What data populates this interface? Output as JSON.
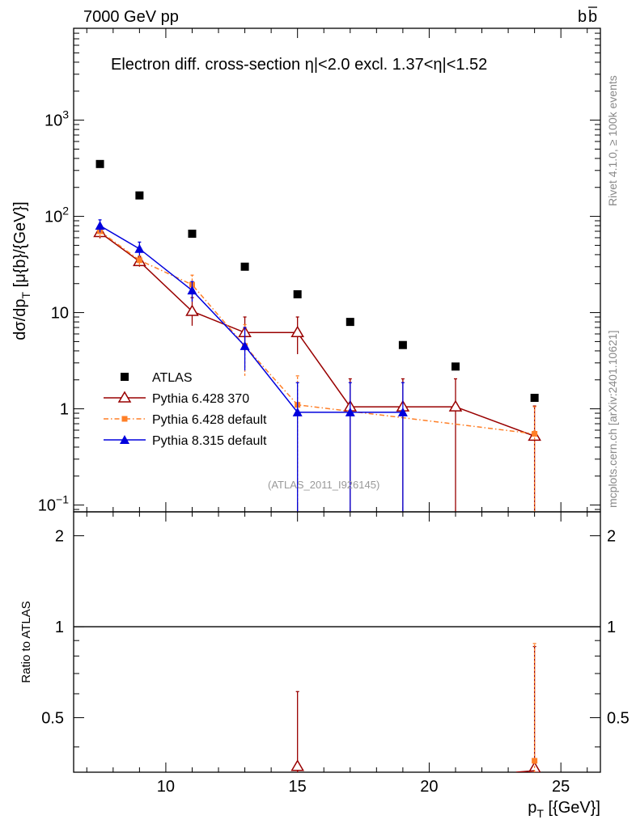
{
  "header": {
    "energy_label": "7000 GeV pp",
    "process_label": "b",
    "process_label_bar": "b"
  },
  "side_labels": {
    "rivet": "Rivet 4.1.0, ≥ 100k events",
    "mcplots": "mcplots.cern.ch [arXiv:2401.10621]"
  },
  "watermark": "(ATLAS_2011_I926145)",
  "colors": {
    "atlas": "#000000",
    "pythia6_370": "#990000",
    "pythia6_default": "#ff7f27",
    "pythia8": "#0000dd"
  },
  "chart_data": [
    {
      "type": "scatter",
      "panel": "main",
      "title": "Electron diff. cross-section η|<2.0 excl. 1.37<η|<1.52",
      "ylabel": "dσ/dp_T [μ{b}/{GeV}]",
      "yscale": "log",
      "ylim": [
        0.085,
        9000
      ],
      "xlim": [
        6.5,
        26.5
      ],
      "y_tick_labels": [
        {
          "value": 0.1,
          "base": "10",
          "exp": "−1"
        },
        {
          "value": 1,
          "base": "1",
          "exp": ""
        },
        {
          "value": 10,
          "base": "10",
          "exp": ""
        },
        {
          "value": 100,
          "base": "10",
          "exp": "2"
        },
        {
          "value": 1000,
          "base": "10",
          "exp": "3"
        }
      ],
      "legend_position": "middle-left",
      "series": [
        {
          "name": "ATLAS",
          "style": "square",
          "x": [
            7.5,
            9,
            11,
            13,
            15,
            17,
            19,
            21,
            24
          ],
          "y": [
            350,
            165,
            66,
            30,
            15.5,
            8,
            4.6,
            2.75,
            1.3
          ]
        },
        {
          "name": "Pythia 6.428 370",
          "style": "open-triangle",
          "x": [
            7.5,
            9,
            11,
            13,
            15,
            17,
            19,
            21,
            24
          ],
          "y": [
            68,
            34,
            10.3,
            6.2,
            6.2,
            1.05,
            1.05,
            1.05,
            0.52
          ],
          "err_lo": [
            9,
            4,
            3,
            2.2,
            2.5,
            1.04,
            1.04,
            1.04,
            0.51
          ],
          "err_hi": [
            9,
            4,
            4,
            2.8,
            2.8,
            1.0,
            1.0,
            1.0,
            0.55
          ]
        },
        {
          "name": "Pythia 6.428 default",
          "style": "filled-square-dashdot",
          "x": [
            7.5,
            9,
            11,
            13,
            15,
            24
          ],
          "y": [
            70,
            35,
            19.5,
            4.5,
            1.1,
            0.55
          ],
          "err_lo": [
            9,
            4,
            5,
            2.3,
            1.09,
            0.54
          ],
          "err_hi": [
            9,
            4,
            5,
            3,
            1.1,
            0.5
          ]
        },
        {
          "name": "Pythia 8.315 default",
          "style": "filled-triangle",
          "x": [
            7.5,
            9,
            11,
            13,
            15,
            17,
            19
          ],
          "y": [
            80,
            46,
            17,
            4.5,
            0.92,
            0.92,
            0.92
          ],
          "err_lo": [
            12,
            7,
            4,
            2,
            0.91,
            0.91,
            0.91
          ],
          "err_hi": [
            12,
            8,
            4,
            2.5,
            0.95,
            0.95,
            0.95
          ]
        }
      ]
    },
    {
      "type": "scatter",
      "panel": "ratio",
      "ylabel": "Ratio to ATLAS",
      "xlabel": "p_T [{GeV}]",
      "xlim": [
        6.5,
        26.5
      ],
      "ylim": [
        0.33,
        2.4
      ],
      "yscale": "log",
      "y_tick_labels": [
        {
          "value": 0.5,
          "label": "0.5"
        },
        {
          "value": 1,
          "label": "1"
        },
        {
          "value": 2,
          "label": "2"
        }
      ],
      "x_tick_labels": [
        {
          "value": 10,
          "label": "10"
        },
        {
          "value": 15,
          "label": "15"
        },
        {
          "value": 20,
          "label": "20"
        },
        {
          "value": 25,
          "label": "25"
        }
      ],
      "reference_line": 1,
      "series": [
        {
          "name": "Pythia 6.428 370",
          "x": [
            15,
            24
          ],
          "y": [
            0.345,
            0.34
          ],
          "err_hi": [
            0.61,
            0.86
          ]
        },
        {
          "name": "Pythia 6.428 default",
          "x": [
            24
          ],
          "y": [
            0.36
          ],
          "err_hi": [
            0.88
          ]
        }
      ]
    }
  ]
}
